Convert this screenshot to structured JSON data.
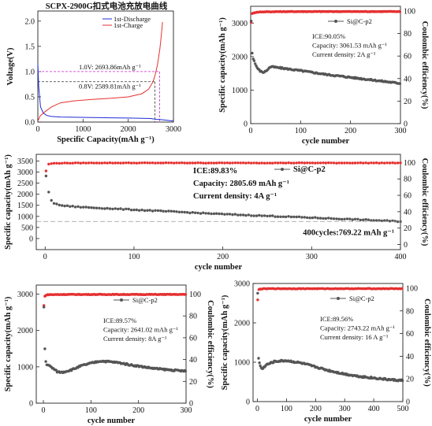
{
  "chart_data": [
    {
      "id": "p1",
      "type": "line",
      "title": "SCPX-2900G扣式电池充放电曲线",
      "xlabel": "Specific Capacity(mAh g⁻¹)",
      "ylabel": "Voltage(V)",
      "xlim": [
        0,
        3000
      ],
      "ylim": [
        0,
        2.2
      ],
      "xticks": [
        0,
        1000,
        2000,
        3000
      ],
      "yticks": [
        0.0,
        0.5,
        1.0,
        1.5,
        2.0
      ],
      "legend": "top-left",
      "series": [
        {
          "name": "1st-Discharge",
          "color": "#1f2bd6",
          "x": [
            0,
            20,
            60,
            120,
            200,
            300,
            500,
            800,
            1200,
            1600,
            2000,
            2300,
            2500,
            2580,
            2620,
            2700,
            2800,
            3000
          ],
          "y": [
            1.15,
            0.7,
            0.3,
            0.18,
            0.13,
            0.11,
            0.1,
            0.095,
            0.09,
            0.085,
            0.08,
            0.075,
            0.07,
            0.06,
            0.055,
            0.05,
            0.04,
            0.02
          ]
        },
        {
          "name": "1st-Charge",
          "color": "#e53030",
          "x": [
            0,
            50,
            150,
            300,
            500,
            800,
            1200,
            1600,
            2000,
            2300,
            2450,
            2550,
            2600,
            2650,
            2700,
            2730,
            2760
          ],
          "y": [
            0.02,
            0.12,
            0.2,
            0.3,
            0.38,
            0.42,
            0.45,
            0.47,
            0.5,
            0.56,
            0.65,
            0.8,
            0.95,
            1.15,
            1.45,
            1.7,
            1.98
          ]
        }
      ],
      "annotations": [
        {
          "text": "1.0V: 2693.86mAh g⁻¹",
          "x": 2694,
          "y": 1.0,
          "color": "#d021d0"
        },
        {
          "text": "0.8V: 2589.81mAh g⁻¹",
          "x": 2590,
          "y": 0.8,
          "color": "#333333"
        }
      ]
    },
    {
      "id": "p2",
      "type": "scatter",
      "xlabel": "cycle number",
      "ylabel": "Specific capacity(mAh g⁻¹)",
      "y2label": "Coulombic efficiency(%)",
      "xlim": [
        0,
        300
      ],
      "ylim": [
        0,
        3500
      ],
      "y2lim": [
        0,
        104.17
      ],
      "xticks": [
        0,
        100,
        200,
        300
      ],
      "yticks": [
        0,
        1000,
        2000,
        3000
      ],
      "y2ticks": [
        0,
        20,
        40,
        60,
        80,
        100
      ],
      "legend": "top-right",
      "series": [
        {
          "name": "Si@C-p2",
          "axis": "left",
          "color": "#555555",
          "x": [
            1,
            2,
            3,
            5,
            10,
            15,
            20,
            25,
            30,
            40,
            50,
            60,
            80,
            100,
            150,
            200,
            250,
            300
          ],
          "y": [
            3061.53,
            2300,
            2100,
            1950,
            1750,
            1620,
            1560,
            1530,
            1560,
            1700,
            1680,
            1660,
            1620,
            1580,
            1470,
            1380,
            1290,
            1200
          ]
        },
        {
          "name": "CE",
          "axis": "right",
          "color": "#e53030",
          "x": [
            1,
            2,
            3,
            5,
            10,
            20,
            50,
            100,
            200,
            300
          ],
          "y": [
            90.05,
            96.5,
            97.5,
            98.2,
            98.8,
            99.2,
            99.4,
            99.5,
            99.5,
            99.5
          ]
        }
      ],
      "annotations": [
        "ICE:90.05%",
        "Capacity: 3061.53 mAh g⁻¹",
        "Current density: 2A g⁻¹"
      ]
    },
    {
      "id": "p3",
      "type": "scatter",
      "xlabel": "cycle number",
      "ylabel": "Specific capacity(mAh g⁻¹)",
      "y2label": "Coulombic efficiency(%)",
      "xlim": [
        -10,
        400
      ],
      "ylim": [
        -500,
        3800
      ],
      "y2lim": [
        -6.25,
        110
      ],
      "xticks": [
        0,
        100,
        200,
        300,
        400
      ],
      "yticks": [
        0,
        500,
        1000,
        1500,
        2000,
        2500,
        3000,
        3500
      ],
      "y2ticks": [
        0,
        20,
        40,
        60,
        80,
        100
      ],
      "legend": "top-right",
      "series": [
        {
          "name": "Si@C-p2",
          "axis": "left",
          "color": "#555555",
          "x": [
            1,
            2,
            3,
            5,
            8,
            12,
            20,
            40,
            60,
            100,
            150,
            200,
            250,
            300,
            350,
            400
          ],
          "y": [
            2805.69,
            2500,
            2300,
            1900,
            1650,
            1550,
            1480,
            1420,
            1380,
            1300,
            1200,
            1100,
            1020,
            940,
            860,
            769.22
          ]
        },
        {
          "name": "CE",
          "axis": "right",
          "color": "#e53030",
          "x": [
            1,
            2,
            3,
            5,
            10,
            20,
            50,
            100,
            200,
            300,
            400
          ],
          "y": [
            89.83,
            96.0,
            97.5,
            98.5,
            99.0,
            99.3,
            99.5,
            99.5,
            99.5,
            99.5,
            99.5
          ]
        }
      ],
      "reference_line": 769.22,
      "annotations": [
        "ICE:89.83%",
        "Capacity:  2805.69 mAh g⁻¹",
        "Current density:  4A g⁻¹",
        "400cycles:769.22 mAh g⁻¹"
      ]
    },
    {
      "id": "p4",
      "type": "scatter",
      "xlabel": "cycle number",
      "ylabel": "Specific capacity(mAh g⁻¹)",
      "y2label": "Coulombic efficiency(%)",
      "xlim": [
        -15,
        300
      ],
      "ylim": [
        0,
        3250
      ],
      "y2lim": [
        0,
        108.33
      ],
      "xticks": [
        0,
        100,
        200,
        300
      ],
      "yticks": [
        0,
        1000,
        2000,
        3000
      ],
      "y2ticks": [
        0,
        20,
        40,
        60,
        80,
        100
      ],
      "legend": "top-right",
      "series": [
        {
          "name": "Si@C-p2",
          "axis": "left",
          "color": "#555555",
          "x": [
            1,
            2,
            4,
            6,
            10,
            20,
            30,
            40,
            60,
            80,
            100,
            120,
            140,
            160,
            180,
            200,
            230,
            260,
            300
          ],
          "y": [
            2641.02,
            1800,
            1200,
            1080,
            1050,
            960,
            860,
            850,
            920,
            1030,
            1100,
            1160,
            1140,
            1110,
            1060,
            1020,
            960,
            920,
            880
          ]
        },
        {
          "name": "CE",
          "axis": "right",
          "color": "#e53030",
          "x": [
            1,
            2,
            3,
            5,
            10,
            20,
            50,
            100,
            200,
            300
          ],
          "y": [
            89.57,
            96.5,
            98.0,
            99.0,
            99.5,
            99.6,
            99.7,
            99.7,
            99.7,
            99.7
          ]
        }
      ],
      "annotations": [
        "ICE:89.57%",
        "Capacity: 2641.02 mAh g⁻¹",
        "Current density: 8A g⁻¹"
      ]
    },
    {
      "id": "p5",
      "type": "scatter",
      "xlabel": "cycle number",
      "ylabel": "Specific capacity(mAh g⁻¹)",
      "y2label": "Coulombic efficiency(%)",
      "xlim": [
        -15,
        500
      ],
      "ylim": [
        0,
        3000
      ],
      "y2lim": [
        0,
        104.17
      ],
      "xticks": [
        0,
        100,
        200,
        300,
        400,
        500
      ],
      "yticks": [
        0,
        1000,
        2000,
        3000
      ],
      "y2ticks": [
        0,
        20,
        40,
        60,
        80,
        100
      ],
      "legend": "top-right",
      "series": [
        {
          "name": "Si@C-p2",
          "axis": "left",
          "color": "#555555",
          "x": [
            1,
            2,
            4,
            8,
            15,
            30,
            60,
            100,
            150,
            200,
            250,
            300,
            350,
            400,
            450,
            500
          ],
          "y": [
            2743.22,
            1800,
            1100,
            950,
            820,
            930,
            1020,
            1040,
            980,
            880,
            780,
            700,
            640,
            600,
            560,
            530
          ]
        },
        {
          "name": "CE",
          "axis": "right",
          "color": "#e53030",
          "x": [
            1,
            2,
            3,
            5,
            10,
            20,
            50,
            100,
            200,
            300,
            400,
            500
          ],
          "y": [
            89.56,
            96.0,
            97.8,
            98.8,
            99.3,
            99.5,
            99.6,
            99.6,
            99.6,
            99.6,
            99.6,
            99.6
          ]
        }
      ],
      "annotations": [
        "ICE:89.56%",
        "Capacity: 2743.22 mAh g⁻¹",
        "Current density: 16 A g⁻¹"
      ]
    }
  ]
}
